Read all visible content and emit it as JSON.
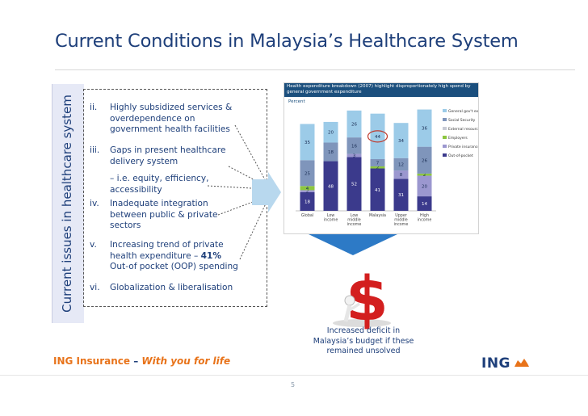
{
  "title": "Current Conditions in Malaysia’s Healthcare System",
  "sidebar_label": "Current issues in healthcare system",
  "items": [
    {
      "num": "ii.",
      "text": "Highly subsidized services & overdependence on government health facilities"
    },
    {
      "num": "iii.",
      "text": "Gaps in present healthcare delivery system"
    },
    {
      "sub": "– i.e. equity, efficiency, accessibility"
    },
    {
      "num": "iv.",
      "text": "Inadequate integration between public & private sectors"
    },
    {
      "num": "v.",
      "text_a": "Increasing trend of private health expenditure – ",
      "text_bold": "41%",
      "text_b": "Out-of pocket (OOP) spending"
    },
    {
      "num": "vi.",
      "text": "Globalization & liberalisation"
    }
  ],
  "chart": {
    "header": "Health expenditure breakdown (2007) highlight disproportionately high spend by general government expenditure",
    "unit": "Percent",
    "legend": [
      "General gov't expenditure",
      "Social Security",
      "External resources",
      "Employers",
      "Private insurance",
      "Out-of-pocket"
    ]
  },
  "chart_data": {
    "type": "bar",
    "title": "Health expenditure breakdown (2007) highlight disproportionately high spend by general government expenditure",
    "ylabel": "Percent",
    "categories": [
      "Global",
      "Low income",
      "Low middle income",
      "Malaysia",
      "Upper middle income",
      "High income"
    ],
    "series": [
      {
        "name": "Out-of-pocket",
        "values": [
          18,
          48,
          52,
          41,
          31,
          14
        ]
      },
      {
        "name": "Private insurance",
        "values": [
          2,
          0,
          3,
          0,
          8,
          20
        ]
      },
      {
        "name": "Employers",
        "values": [
          4,
          0,
          0,
          2,
          0,
          2
        ]
      },
      {
        "name": "External resources",
        "values": [
          0,
          0,
          0,
          0,
          0,
          0
        ]
      },
      {
        "name": "Social Security",
        "values": [
          25,
          18,
          16,
          7,
          12,
          26
        ]
      },
      {
        "name": "General gov't expenditure",
        "values": [
          35,
          20,
          26,
          44,
          34,
          36
        ]
      }
    ],
    "ylim": [
      0,
      100
    ],
    "colors": [
      "#3b3a8c",
      "#9b97cf",
      "#8cc63f",
      "#c8cbd5",
      "#7f95bb",
      "#9ccbe8"
    ]
  },
  "caption": "Increased deficit in Malaysia’s budget if these remained unsolved",
  "brand_left": {
    "ing": "ING Insurance",
    "dash": " – ",
    "slogan": "With you for life"
  },
  "brand_right": "ING",
  "page_number": "5",
  "colors": {
    "title": "#1e3f7a",
    "accent_orange": "#e8731a",
    "chart_header": "#1b4f7d"
  }
}
